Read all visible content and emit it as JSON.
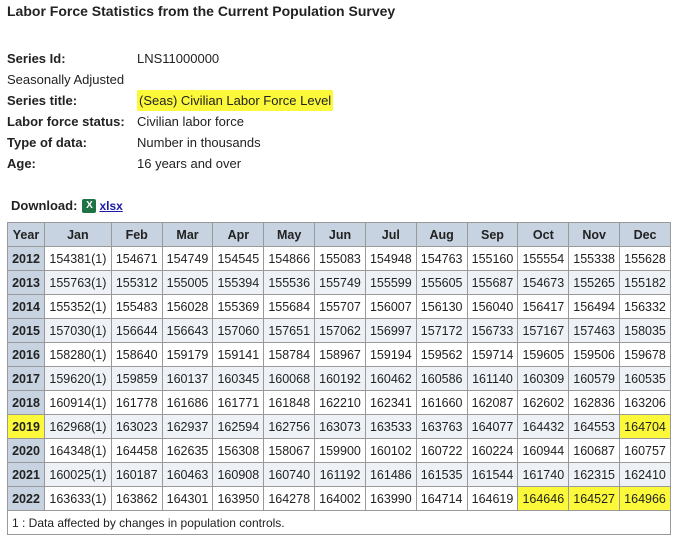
{
  "page": {
    "title": "Labor Force Statistics from the Current Population Survey"
  },
  "meta": {
    "series_id_label": "Series Id:",
    "series_id_value": "LNS11000000",
    "adjustment": "Seasonally Adjusted",
    "series_title_label": "Series title:",
    "series_title_value": "(Seas) Civilian Labor Force Level",
    "labor_status_label": "Labor force status:",
    "labor_status_value": "Civilian labor force",
    "data_type_label": "Type of data:",
    "data_type_value": "Number in thousands",
    "age_label": "Age:",
    "age_value": "16 years and over"
  },
  "download": {
    "label": "Download:",
    "icon": "excel-icon",
    "link_text": "xlsx"
  },
  "table": {
    "headers": [
      "Year",
      "Jan",
      "Feb",
      "Mar",
      "Apr",
      "May",
      "Jun",
      "Jul",
      "Aug",
      "Sep",
      "Oct",
      "Nov",
      "Dec"
    ],
    "rows": [
      {
        "year": "2012",
        "values": [
          "154381(1)",
          "154671",
          "154749",
          "154545",
          "154866",
          "155083",
          "154948",
          "154763",
          "155160",
          "155554",
          "155338",
          "155628"
        ]
      },
      {
        "year": "2013",
        "values": [
          "155763(1)",
          "155312",
          "155005",
          "155394",
          "155536",
          "155749",
          "155599",
          "155605",
          "155687",
          "154673",
          "155265",
          "155182"
        ]
      },
      {
        "year": "2014",
        "values": [
          "155352(1)",
          "155483",
          "156028",
          "155369",
          "155684",
          "155707",
          "156007",
          "156130",
          "156040",
          "156417",
          "156494",
          "156332"
        ]
      },
      {
        "year": "2015",
        "values": [
          "157030(1)",
          "156644",
          "156643",
          "157060",
          "157651",
          "157062",
          "156997",
          "157172",
          "156733",
          "157167",
          "157463",
          "158035"
        ]
      },
      {
        "year": "2016",
        "values": [
          "158280(1)",
          "158640",
          "159179",
          "159141",
          "158784",
          "158967",
          "159194",
          "159562",
          "159714",
          "159605",
          "159506",
          "159678"
        ]
      },
      {
        "year": "2017",
        "values": [
          "159620(1)",
          "159859",
          "160137",
          "160345",
          "160068",
          "160192",
          "160462",
          "160586",
          "161140",
          "160309",
          "160579",
          "160535"
        ]
      },
      {
        "year": "2018",
        "values": [
          "160914(1)",
          "161778",
          "161686",
          "161771",
          "161848",
          "162210",
          "162341",
          "161660",
          "162087",
          "162602",
          "162836",
          "163206"
        ]
      },
      {
        "year": "2019",
        "values": [
          "162968(1)",
          "163023",
          "162937",
          "162594",
          "162756",
          "163073",
          "163533",
          "163763",
          "164077",
          "164432",
          "164553",
          "164704"
        ]
      },
      {
        "year": "2020",
        "values": [
          "164348(1)",
          "164458",
          "162635",
          "156308",
          "158067",
          "159900",
          "160102",
          "160722",
          "160224",
          "160944",
          "160687",
          "160757"
        ]
      },
      {
        "year": "2021",
        "values": [
          "160025(1)",
          "160187",
          "160463",
          "160908",
          "160740",
          "161192",
          "161486",
          "161535",
          "161544",
          "161740",
          "162315",
          "162410"
        ]
      },
      {
        "year": "2022",
        "values": [
          "163633(1)",
          "163862",
          "164301",
          "163950",
          "164278",
          "164002",
          "163990",
          "164714",
          "164619",
          "164646",
          "164527",
          "164966"
        ]
      }
    ],
    "footnote": "1 : Data affected by changes in population controls."
  },
  "highlight_color": "#fbf93a",
  "header_bg": "#c8d3e1"
}
